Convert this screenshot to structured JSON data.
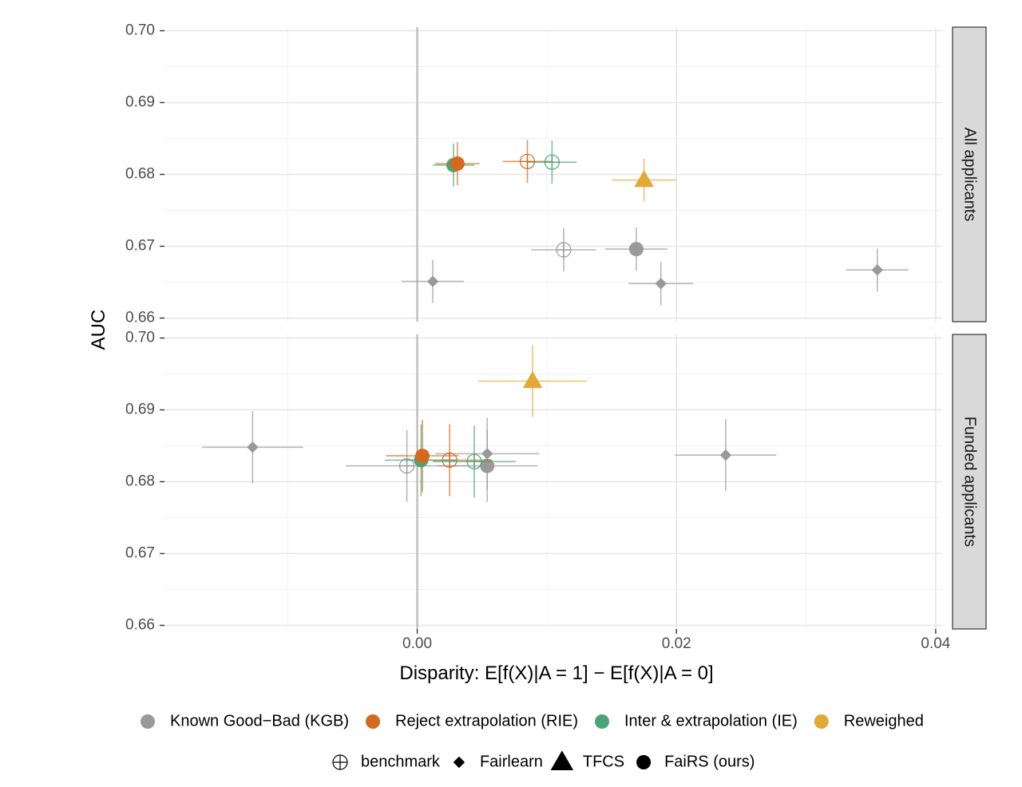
{
  "colors": {
    "KGB": "#999999",
    "RIE": "#D2691E",
    "IE": "#4BA37A",
    "Reweighed": "#E2A83A"
  },
  "legend": {
    "color_items": [
      {
        "key": "KGB",
        "label": "Known Good−Bad (KGB)"
      },
      {
        "key": "RIE",
        "label": "Reject extrapolation (RIE)"
      },
      {
        "key": "IE",
        "label": "Inter & extrapolation (IE)"
      },
      {
        "key": "Reweighed",
        "label": "Reweighed"
      }
    ],
    "shape_items": [
      {
        "key": "benchmark",
        "label": "benchmark"
      },
      {
        "key": "fairlearn",
        "label": "Fairlearn"
      },
      {
        "key": "tfcs",
        "label": "TFCS"
      },
      {
        "key": "fairs",
        "label": "FaiRS (ours)"
      }
    ]
  },
  "chart_data": {
    "type": "scatter",
    "xlabel": "Disparity: E[f(X)|A = 1] − E[f(X)|A = 0]",
    "ylabel": "AUC",
    "xlim": [
      -0.0195,
      0.0405
    ],
    "ylim": [
      0.6595,
      0.7005
    ],
    "x_ticks": [
      0.0,
      0.02,
      0.04
    ],
    "x_tick_labels": [
      "0.00",
      "0.02",
      "0.04"
    ],
    "y_ticks": [
      0.66,
      0.67,
      0.68,
      0.69,
      0.7
    ],
    "y_tick_labels": [
      "0.66",
      "0.67",
      "0.68",
      "0.69",
      "0.70"
    ],
    "vline_x": 0,
    "grid": true,
    "legend_position": "bottom",
    "panels": [
      {
        "strip": "All applicants",
        "points": [
          {
            "group": "KGB",
            "shape": "fairlearn",
            "x": 0.0012,
            "y": 0.6651,
            "xerr": 0.0024,
            "yerr": 0.003
          },
          {
            "group": "KGB",
            "shape": "fairlearn",
            "x": 0.0188,
            "y": 0.6648,
            "xerr": 0.0025,
            "yerr": 0.003
          },
          {
            "group": "KGB",
            "shape": "fairlearn",
            "x": 0.0355,
            "y": 0.6667,
            "xerr": 0.0024,
            "yerr": 0.003
          },
          {
            "group": "KGB",
            "shape": "benchmark",
            "x": 0.0113,
            "y": 0.6695,
            "xerr": 0.0025,
            "yerr": 0.003
          },
          {
            "group": "KGB",
            "shape": "fairs",
            "x": 0.0169,
            "y": 0.6696,
            "xerr": 0.0024,
            "yerr": 0.003
          },
          {
            "group": "RIE",
            "shape": "benchmark",
            "x": 0.0085,
            "y": 0.6818,
            "xerr": 0.0019,
            "yerr": 0.003
          },
          {
            "group": "IE",
            "shape": "benchmark",
            "x": 0.0104,
            "y": 0.6817,
            "xerr": 0.0019,
            "yerr": 0.003
          },
          {
            "group": "IE",
            "shape": "fairs",
            "x": 0.0028,
            "y": 0.6813,
            "xerr": 0.0016,
            "yerr": 0.003
          },
          {
            "group": "RIE",
            "shape": "fairs",
            "x": 0.0031,
            "y": 0.6815,
            "xerr": 0.0017,
            "yerr": 0.003
          },
          {
            "group": "Reweighed",
            "shape": "tfcs",
            "x": 0.0175,
            "y": 0.6792,
            "xerr": 0.0025,
            "yerr": 0.003
          }
        ]
      },
      {
        "strip": "Funded applicants",
        "points": [
          {
            "group": "KGB",
            "shape": "fairlearn",
            "x": -0.0127,
            "y": 0.6848,
            "xerr": 0.0039,
            "yerr": 0.005
          },
          {
            "group": "KGB",
            "shape": "fairlearn",
            "x": 0.0054,
            "y": 0.6839,
            "xerr": 0.004,
            "yerr": 0.005
          },
          {
            "group": "KGB",
            "shape": "fairlearn",
            "x": 0.0238,
            "y": 0.6837,
            "xerr": 0.0039,
            "yerr": 0.005
          },
          {
            "group": "KGB",
            "shape": "benchmark",
            "x": -0.0008,
            "y": 0.6822,
            "xerr": 0.0047,
            "yerr": 0.005
          },
          {
            "group": "KGB",
            "shape": "fairs",
            "x": 0.0054,
            "y": 0.6822,
            "xerr": 0.0039,
            "yerr": 0.005
          },
          {
            "group": "RIE",
            "shape": "benchmark",
            "x": 0.0025,
            "y": 0.683,
            "xerr": 0.0033,
            "yerr": 0.005
          },
          {
            "group": "IE",
            "shape": "benchmark",
            "x": 0.0044,
            "y": 0.6828,
            "xerr": 0.0032,
            "yerr": 0.005
          },
          {
            "group": "IE",
            "shape": "fairs",
            "x": 0.0003,
            "y": 0.683,
            "xerr": 0.0028,
            "yerr": 0.005
          },
          {
            "group": "RIE",
            "shape": "fairs",
            "x": 0.0004,
            "y": 0.6836,
            "xerr": 0.0028,
            "yerr": 0.005
          },
          {
            "group": "Reweighed",
            "shape": "tfcs",
            "x": 0.0089,
            "y": 0.694,
            "xerr": 0.0042,
            "yerr": 0.005
          }
        ]
      }
    ]
  }
}
